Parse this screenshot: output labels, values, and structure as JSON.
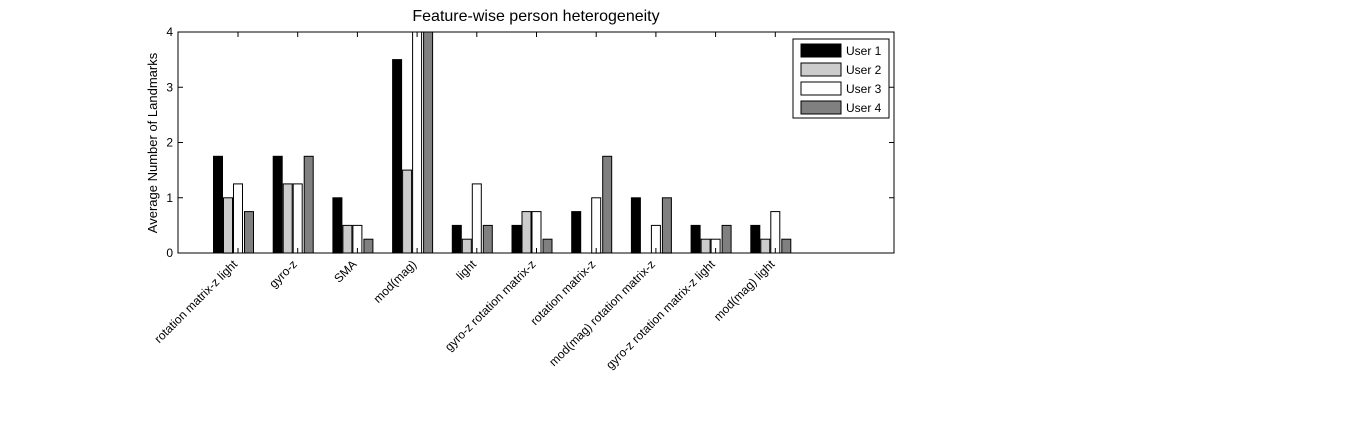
{
  "chart_data": {
    "type": "bar",
    "title": "Feature-wise person heterogeneity",
    "xlabel": "",
    "ylabel": "Average Number of Landmarks",
    "ylim": [
      0,
      4
    ],
    "yticks": [
      "0",
      "1",
      "2",
      "3",
      "4"
    ],
    "grid": false,
    "legend_position": "top-right",
    "categories": [
      "rotation matrix-z  light",
      "gyro-z",
      "SMA",
      "mod(mag)",
      "light",
      "gyro-z  rotation matrix-z",
      "rotation matrix-z",
      "mod(mag)  rotation matrix-z",
      "gyro-z  rotation matrix-z  light",
      "mod(mag)  light"
    ],
    "series": [
      {
        "name": "User 1",
        "color": "#000000",
        "values": [
          1.75,
          1.75,
          1.0,
          3.5,
          0.5,
          0.5,
          0.75,
          1.0,
          0.5,
          0.5
        ]
      },
      {
        "name": "User 2",
        "color": "#cccccc",
        "values": [
          1.0,
          1.25,
          0.5,
          1.5,
          0.25,
          0.75,
          0,
          0,
          0.25,
          0.25
        ]
      },
      {
        "name": "User 3",
        "color": "#ffffff",
        "values": [
          1.25,
          1.25,
          0.5,
          4.0,
          1.25,
          0.75,
          1.0,
          0.5,
          0.25,
          0.75
        ]
      },
      {
        "name": "User 4",
        "color": "#808080",
        "values": [
          0.75,
          1.75,
          0.25,
          4.0,
          0.5,
          0.25,
          1.75,
          1.0,
          0.5,
          0.25
        ]
      }
    ]
  }
}
